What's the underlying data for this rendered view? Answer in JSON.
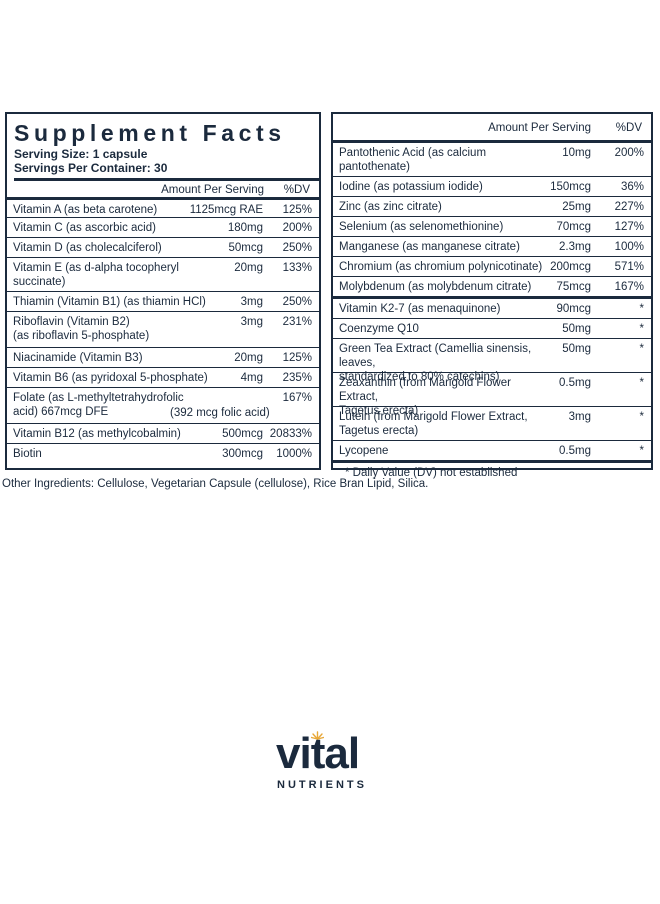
{
  "supplement_facts": {
    "title": "Supplement Facts",
    "serving_size": "Serving Size: 1 capsule",
    "servings_per_container": "Servings Per Container: 30",
    "header_amount": "Amount Per Serving",
    "header_dv": "%DV",
    "left_rows": [
      {
        "name": "Vitamin A (as beta carotene)",
        "amount": "1125mcg RAE",
        "dv": "125%"
      },
      {
        "name": "Vitamin C (as ascorbic acid)",
        "amount": "180mg",
        "dv": "200%"
      },
      {
        "name": "Vitamin D (as cholecalciferol)",
        "amount": "50mcg",
        "dv": "250%"
      },
      {
        "name": "Vitamin E (as d-alpha tocopheryl succinate)",
        "amount": "20mg",
        "dv": "133%"
      },
      {
        "name": "Thiamin (Vitamin B1) (as thiamin HCl)",
        "amount": "3mg",
        "dv": "250%"
      },
      {
        "name": "Riboflavin (Vitamin B2)",
        "name2": "(as riboflavin 5-phosphate)",
        "amount": "3mg",
        "dv": "231%"
      },
      {
        "name": "Niacinamide (Vitamin B3)",
        "amount": "20mg",
        "dv": "125%"
      },
      {
        "name": "Vitamin B6 (as pyridoxal 5-phosphate)",
        "amount": "4mg",
        "dv": "235%"
      },
      {
        "name": "Folate (as L-methyltetrahydrofolic acid) 667mcg DFE",
        "sub": "(392 mcg folic acid)",
        "amount": "",
        "dv": "167%"
      },
      {
        "name": "Vitamin B12 (as methylcobalmin)",
        "amount": "500mcg",
        "dv": "20833%"
      },
      {
        "name": "Biotin",
        "amount": "300mcg",
        "dv": "1000%"
      }
    ],
    "right_rows": [
      {
        "name": "Pantothenic Acid (as calcium pantothenate)",
        "amount": "10mg",
        "dv": "200%"
      },
      {
        "name": "Iodine (as potassium iodide)",
        "amount": "150mcg",
        "dv": "36%"
      },
      {
        "name": "Zinc (as zinc citrate)",
        "amount": "25mg",
        "dv": "227%"
      },
      {
        "name": "Selenium (as selenomethionine)",
        "amount": "70mcg",
        "dv": "127%"
      },
      {
        "name": "Manganese (as manganese citrate)",
        "amount": "2.3mg",
        "dv": "100%"
      },
      {
        "name": "Chromium (as chromium polynicotinate)",
        "amount": "200mcg",
        "dv": "571%"
      },
      {
        "name": "Molybdenum (as molybdenum citrate)",
        "amount": "75mcg",
        "dv": "167%"
      },
      {
        "name": "Vitamin K2-7 (as menaquinone)",
        "amount": "90mcg",
        "dv": "*"
      },
      {
        "name": "Coenzyme Q10",
        "amount": "50mg",
        "dv": "*"
      },
      {
        "name": "Green Tea Extract (Camellia sinensis, leaves,",
        "name2": "standardized to 80% catechins)",
        "amount": "50mg",
        "dv": "*"
      },
      {
        "name": "Zeaxanthin (from Marigold Flower Extract,",
        "name2": "Tagetus erecta)",
        "amount": "0.5mg",
        "dv": "*"
      },
      {
        "name": "Lutein (from Marigold Flower Extract,",
        "name2": "Tagetus erecta)",
        "amount": "3mg",
        "dv": "*"
      },
      {
        "name": "Lycopene",
        "amount": "0.5mg",
        "dv": "*"
      }
    ],
    "footnote": "* Daily Value (DV) not established"
  },
  "other_ingredients": "Other Ingredients: Cellulose, Vegetarian Capsule (cellulose), Rice Bran Lipid, Silica.",
  "logo": {
    "word": "vital",
    "sub": "NUTRIENTS",
    "accent_color": "#e8a838",
    "brand_color": "#1b2a3d"
  }
}
